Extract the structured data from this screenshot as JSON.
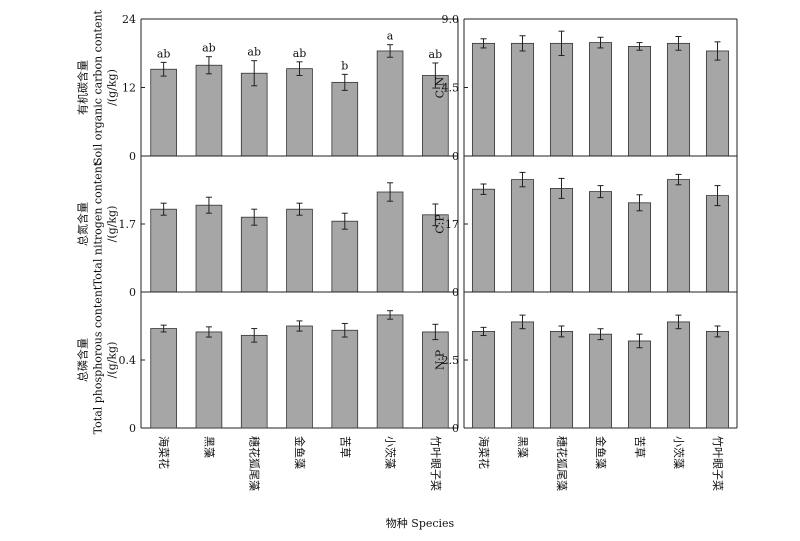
{
  "x_title": "物种 Species",
  "categories": [
    "海菜花",
    "黑藻",
    "穗花狐尾藻",
    "金鱼藻",
    "苦草",
    "小茨藻",
    "竹叶眼子菜"
  ],
  "colors": {
    "bar": "#a6a6a6",
    "axis": "#222222"
  },
  "chart_data": [
    {
      "type": "bar",
      "ylabel": [
        "有机碳含量",
        "Soil organic carbon content",
        "/(g/kg)"
      ],
      "ylim": [
        0,
        24
      ],
      "yticks": [
        "0",
        "12",
        "24"
      ],
      "categories": [
        "海菜花",
        "黑藻",
        "穗花狐尾藻",
        "金鱼藻",
        "苦草",
        "小茨藻",
        "竹叶眼子菜"
      ],
      "values": [
        15.2,
        15.9,
        14.5,
        15.3,
        12.9,
        18.4,
        14.1
      ],
      "errors": [
        1.2,
        1.5,
        2.2,
        1.2,
        1.4,
        1.1,
        2.2
      ],
      "letters": [
        "ab",
        "ab",
        "ab",
        "ab",
        "b",
        "a",
        "ab"
      ]
    },
    {
      "type": "bar",
      "ylabel": [
        "C:N"
      ],
      "ylim": [
        0,
        9.0
      ],
      "yticks": [
        "0",
        "4.5",
        "9.0"
      ],
      "categories": [
        "海菜花",
        "黑藻",
        "穗花狐尾藻",
        "金鱼藻",
        "苦草",
        "小茨藻",
        "竹叶眼子菜"
      ],
      "values": [
        7.4,
        7.4,
        7.4,
        7.45,
        7.2,
        7.4,
        6.9
      ],
      "errors": [
        0.3,
        0.5,
        0.8,
        0.35,
        0.25,
        0.45,
        0.6
      ],
      "letters": []
    },
    {
      "type": "bar",
      "ylabel": [
        "总氮含量",
        "Total nitrogen content",
        "/(g/kg)"
      ],
      "ylim": [
        0,
        3.4
      ],
      "yticks": [
        "0",
        "1.7"
      ],
      "categories": [
        "海菜花",
        "黑藻",
        "穗花狐尾藻",
        "金鱼藻",
        "苦草",
        "小茨藻",
        "竹叶眼子菜"
      ],
      "values": [
        2.07,
        2.17,
        1.87,
        2.07,
        1.77,
        2.5,
        1.93
      ],
      "errors": [
        0.15,
        0.2,
        0.2,
        0.15,
        0.2,
        0.23,
        0.27
      ],
      "letters": []
    },
    {
      "type": "bar",
      "ylabel": [
        "C:P"
      ],
      "ylim": [
        0,
        34
      ],
      "yticks": [
        "0",
        "17"
      ],
      "categories": [
        "海菜花",
        "黑藻",
        "穗花狐尾藻",
        "金鱼藻",
        "苦草",
        "小茨藻",
        "竹叶眼子菜"
      ],
      "values": [
        25.7,
        28.1,
        25.9,
        25.1,
        22.3,
        28.1,
        24.1
      ],
      "errors": [
        1.3,
        1.8,
        2.5,
        1.5,
        2.0,
        1.3,
        2.5
      ],
      "letters": []
    },
    {
      "type": "bar",
      "ylabel": [
        "总磷含量",
        "Total phosphorous content",
        "/(g/kg)"
      ],
      "ylim": [
        0,
        0.8
      ],
      "yticks": [
        "0",
        "0.4"
      ],
      "categories": [
        "海菜花",
        "黑藻",
        "穗花狐尾藻",
        "金鱼藻",
        "苦草",
        "小茨藻",
        "竹叶眼子菜"
      ],
      "values": [
        0.585,
        0.565,
        0.545,
        0.6,
        0.575,
        0.665,
        0.565
      ],
      "errors": [
        0.02,
        0.03,
        0.04,
        0.03,
        0.04,
        0.025,
        0.045
      ],
      "letters": []
    },
    {
      "type": "bar",
      "ylabel": [
        "N:P"
      ],
      "ylim": [
        0,
        5.0
      ],
      "yticks": [
        "0",
        "2.5"
      ],
      "categories": [
        "海菜花",
        "黑藻",
        "穗花狐尾藻",
        "金鱼藻",
        "苦草",
        "小茨藻",
        "竹叶眼子菜"
      ],
      "values": [
        3.55,
        3.9,
        3.55,
        3.45,
        3.2,
        3.9,
        3.55
      ],
      "errors": [
        0.15,
        0.25,
        0.2,
        0.2,
        0.25,
        0.25,
        0.2
      ],
      "letters": []
    }
  ]
}
